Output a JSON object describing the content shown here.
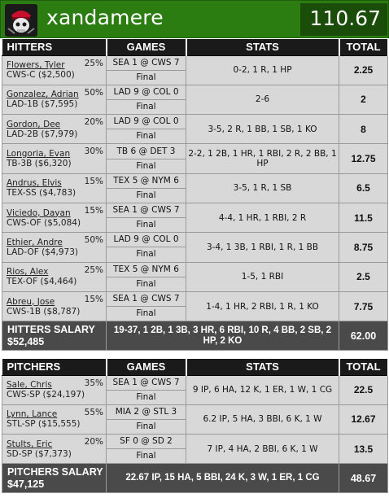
{
  "team": {
    "name": "xandamere",
    "score": "110.67"
  },
  "hitters": {
    "headers": {
      "player": "HITTERS",
      "games": "GAMES",
      "stats": "STATS",
      "total": "TOTAL"
    },
    "rows": [
      {
        "name": "Flowers, Tyler",
        "info": "CWS-C ($2,500)",
        "pct": "25%",
        "game": "SEA 1 @ CWS 7",
        "status": "Final",
        "stats": "0-2, 1 R, 1 HP",
        "total": "2.25"
      },
      {
        "name": "Gonzalez, Adrian",
        "info": "LAD-1B ($7,595)",
        "pct": "50%",
        "game": "LAD 9 @ COL 0",
        "status": "Final",
        "stats": "2-6",
        "total": "2"
      },
      {
        "name": "Gordon, Dee",
        "info": "LAD-2B ($7,979)",
        "pct": "20%",
        "game": "LAD 9 @ COL 0",
        "status": "Final",
        "stats": "3-5, 2 R, 1 BB, 1 SB, 1 KO",
        "total": "8"
      },
      {
        "name": "Longoria, Evan",
        "info": "TB-3B ($6,320)",
        "pct": "30%",
        "game": "TB 6 @ DET 3",
        "status": "Final",
        "stats": "2-2, 1 2B, 1 HR, 1 RBI, 2 R, 2 BB, 1 HP",
        "total": "12.75"
      },
      {
        "name": "Andrus, Elvis",
        "info": "TEX-SS ($4,783)",
        "pct": "15%",
        "game": "TEX 5 @ NYM 6",
        "status": "Final",
        "stats": "3-5, 1 R, 1 SB",
        "total": "6.5"
      },
      {
        "name": "Viciedo, Dayan",
        "info": "CWS-OF ($5,084)",
        "pct": "15%",
        "game": "SEA 1 @ CWS 7",
        "status": "Final",
        "stats": "4-4, 1 HR, 1 RBI, 2 R",
        "total": "11.5"
      },
      {
        "name": "Ethier, Andre",
        "info": "LAD-OF ($4,973)",
        "pct": "50%",
        "game": "LAD 9 @ COL 0",
        "status": "Final",
        "stats": "3-4, 1 3B, 1 RBI, 1 R, 1 BB",
        "total": "8.75"
      },
      {
        "name": "Rios, Alex",
        "info": "TEX-OF ($4,464)",
        "pct": "25%",
        "game": "TEX 5 @ NYM 6",
        "status": "Final",
        "stats": "1-5, 1 RBI",
        "total": "2.5"
      },
      {
        "name": "Abreu, Jose",
        "info": "CWS-1B ($8,787)",
        "pct": "15%",
        "game": "SEA 1 @ CWS 7",
        "status": "Final",
        "stats": "1-4, 1 HR, 2 RBI, 1 R, 1 KO",
        "total": "7.75"
      }
    ],
    "summary": {
      "label": "HITTERS SALARY",
      "salary": "$52,485",
      "stats": "19-37, 1 2B, 1 3B, 3 HR, 6 RBI, 10 R, 4 BB, 2 SB, 2 HP, 2 KO",
      "total": "62.00"
    }
  },
  "pitchers": {
    "headers": {
      "player": "PITCHERS",
      "games": "GAMES",
      "stats": "STATS",
      "total": "TOTAL"
    },
    "rows": [
      {
        "name": "Sale, Chris",
        "info": "CWS-SP ($24,197)",
        "pct": "35%",
        "game": "SEA 1 @ CWS 7",
        "status": "Final",
        "stats": "9 IP, 6 HA, 12 K, 1 ER, 1 W, 1 CG",
        "total": "22.5"
      },
      {
        "name": "Lynn, Lance",
        "info": "STL-SP ($15,555)",
        "pct": "55%",
        "game": "MIA 2 @ STL 3",
        "status": "Final",
        "stats": "6.2 IP, 5 HA, 3 BBI, 6 K, 1 W",
        "total": "12.67"
      },
      {
        "name": "Stults, Eric",
        "info": "SD-SP ($7,373)",
        "pct": "20%",
        "game": "SF 0 @ SD 2",
        "status": "Final",
        "stats": "7 IP, 4 HA, 2 BBI, 6 K, 1 W",
        "total": "13.5"
      }
    ],
    "summary": {
      "label": "PITCHERS SALARY",
      "salary": "$47,125",
      "stats": "22.67 IP, 15 HA, 5 BBI, 24 K, 3 W, 1 ER, 1 CG",
      "total": "48.67"
    }
  }
}
